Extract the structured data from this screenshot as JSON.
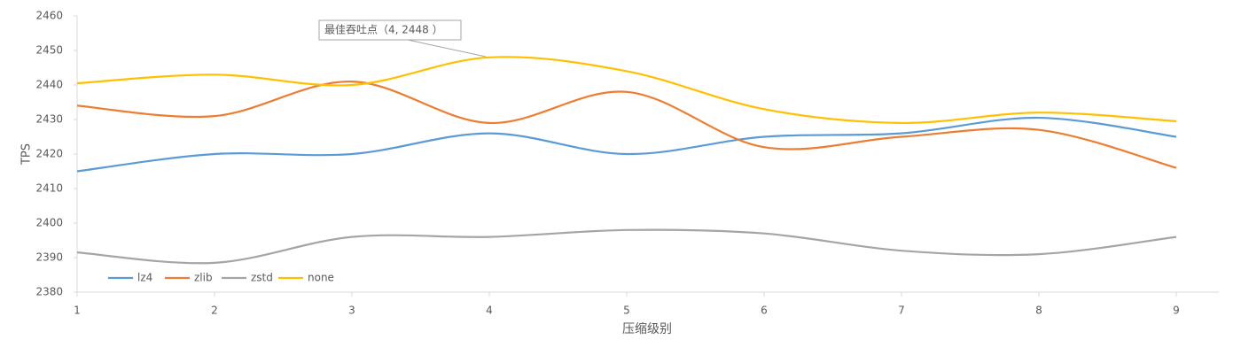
{
  "chart_data": {
    "type": "line",
    "x": [
      1,
      2,
      3,
      4,
      5,
      6,
      7,
      8,
      9
    ],
    "xlim": [
      1,
      9
    ],
    "xticks": [
      1,
      2,
      3,
      4,
      5,
      6,
      7,
      8,
      9
    ],
    "ylim": [
      2380,
      2460
    ],
    "yticks": [
      2380,
      2390,
      2400,
      2410,
      2420,
      2430,
      2440,
      2450,
      2460
    ],
    "x_label": "压缩级别",
    "y_label": "TPS",
    "annotation": "最佳吞吐点（4, 2448 ）",
    "smooth": true,
    "grid": false,
    "legend": "lower left",
    "series": [
      {
        "name": "lz4",
        "color": "#5b9bd5",
        "values": [
          2415,
          2420,
          2420,
          2426,
          2420,
          2425,
          2426,
          2430.5,
          2425
        ]
      },
      {
        "name": "zlib",
        "color": "#ed7d31",
        "values": [
          2434,
          2431,
          2441,
          2429,
          2438,
          2422,
          2425,
          2427,
          2416
        ]
      },
      {
        "name": "zstd",
        "color": "#a5a5a5",
        "values": [
          2391.5,
          2388.5,
          2396,
          2396,
          2398,
          2397,
          2392,
          2391,
          2396
        ]
      },
      {
        "name": "none",
        "color": "#ffc000",
        "values": [
          2440.5,
          2443,
          2440,
          2448,
          2444,
          2433,
          2429,
          2432,
          2429.5
        ]
      }
    ]
  }
}
